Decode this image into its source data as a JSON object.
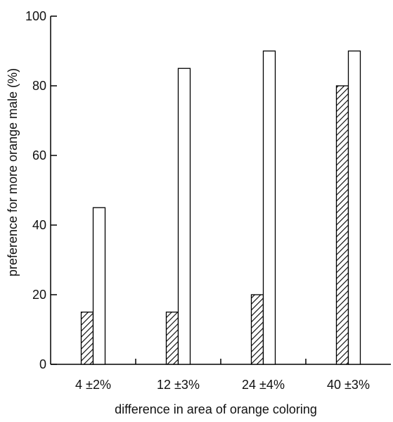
{
  "chart_data": {
    "type": "bar",
    "xlabel": "difference in area of orange coloring",
    "ylabel": "preference for more orange male (%)",
    "ylim": [
      0,
      100
    ],
    "yticks": [
      "0",
      "20",
      "40",
      "60",
      "80",
      "100"
    ],
    "categories": [
      "4 ±2%",
      "12 ±3%",
      "24 ±4%",
      "40 ±3%"
    ],
    "series": [
      {
        "style": "hatched",
        "values": [
          15,
          15,
          20,
          80
        ]
      },
      {
        "style": "open",
        "values": [
          45,
          85,
          90,
          90
        ]
      }
    ],
    "grid": false,
    "legend": "none",
    "colors": {
      "axis": "#000000",
      "bar_outline": "#000000",
      "open_fill": "#ffffff",
      "hatch": "#000000"
    }
  }
}
